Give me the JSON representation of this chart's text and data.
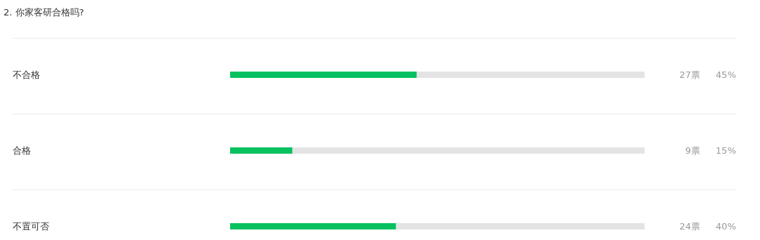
{
  "chart_data": {
    "type": "bar",
    "orientation": "horizontal",
    "title": "2. 你家客研合格吗?",
    "categories": [
      "不合格",
      "合格",
      "不置可否"
    ],
    "values": [
      45,
      15,
      40
    ],
    "color": "#07c160",
    "xlim": [
      0,
      100
    ],
    "value_labels": [
      "45%",
      "15%",
      "40%"
    ],
    "annotations": [
      "27票",
      "9票",
      "24票"
    ],
    "tick_labels": "y",
    "grid": false,
    "legend": false
  }
}
